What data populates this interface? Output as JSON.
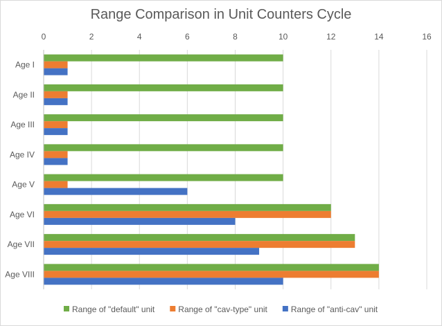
{
  "chart_data": {
    "type": "bar",
    "orientation": "horizontal",
    "title": "Range Comparison in Unit Counters Cycle",
    "xlabel": "",
    "ylabel": "",
    "xlim": [
      0,
      16
    ],
    "x_ticks": [
      "0",
      "2",
      "4",
      "6",
      "8",
      "10",
      "12",
      "14",
      "16"
    ],
    "x_axis_position": "top",
    "grid": true,
    "legend_position": "bottom",
    "categories": [
      "Age I",
      "Age II",
      "Age III",
      "Age IV",
      "Age V",
      "Age VI",
      "Age VII",
      "Age VIII"
    ],
    "series": [
      {
        "name": "Range of \"default\" unit",
        "color": "#70ad47",
        "values": [
          10,
          10,
          10,
          10,
          10,
          12,
          13,
          14
        ]
      },
      {
        "name": "Range of \"cav-type\" unit",
        "color": "#ed7d31",
        "values": [
          1,
          1,
          1,
          1,
          1,
          12,
          13,
          14
        ]
      },
      {
        "name": "Range of \"anti-cav\" unit",
        "color": "#4472c4",
        "values": [
          1,
          1,
          1,
          1,
          6,
          8,
          9,
          10
        ]
      }
    ]
  }
}
